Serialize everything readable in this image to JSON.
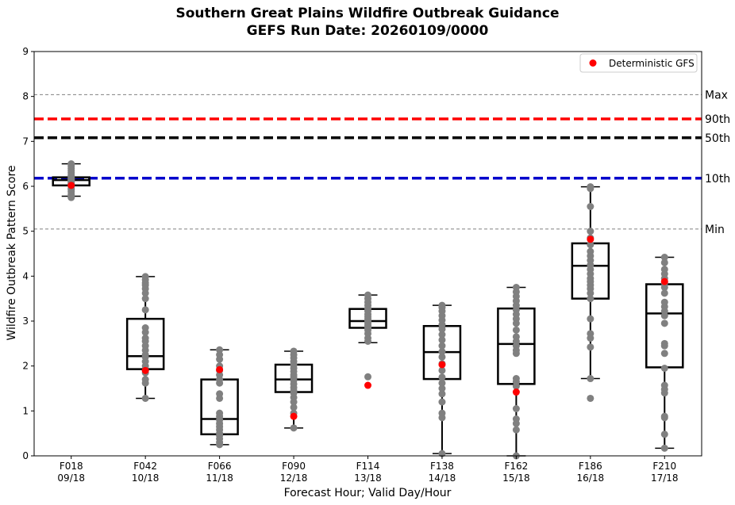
{
  "chart_data": {
    "type": "box",
    "title": "Southern Great Plains Wildfire Outbreak Guidance",
    "subtitle": "GEFS Run Date: 20260109/0000",
    "xlabel": "Forecast Hour; Valid Day/Hour",
    "ylabel": "Wildfire Outbreak Pattern Score",
    "ylim": [
      0,
      9
    ],
    "yticks": [
      "0",
      "1",
      "2",
      "3",
      "4",
      "5",
      "6",
      "7",
      "8",
      "9"
    ],
    "legend": {
      "label": "Deterministic GFS",
      "placement": "top-right"
    },
    "reference_lines": [
      {
        "label": "Max",
        "value": 8.04,
        "color": "#808080",
        "style": "thin-dashed"
      },
      {
        "label": "90th",
        "value": 7.5,
        "color": "#ff0000",
        "style": "thick-dashed"
      },
      {
        "label": "50th",
        "value": 7.08,
        "color": "#000000",
        "style": "thick-dashed"
      },
      {
        "label": "10th",
        "value": 6.18,
        "color": "#0000cc",
        "style": "thick-dashed"
      },
      {
        "label": "Min",
        "value": 5.05,
        "color": "#808080",
        "style": "thin-dashed"
      }
    ],
    "series": [
      {
        "hour": "F018",
        "valid": "09/18",
        "whisker_low": 5.78,
        "q1": 6.02,
        "median": 6.14,
        "q3": 6.2,
        "whisker_high": 6.5,
        "gfs": 6.02,
        "members": [
          5.75,
          5.78,
          5.82,
          5.88,
          5.92,
          5.95,
          6.0,
          6.02,
          6.05,
          6.08,
          6.1,
          6.12,
          6.14,
          6.15,
          6.17,
          6.18,
          6.2,
          6.22,
          6.25,
          6.3,
          6.35,
          6.4,
          6.45,
          6.5
        ]
      },
      {
        "hour": "F042",
        "valid": "10/18",
        "whisker_low": 1.28,
        "q1": 1.93,
        "median": 2.22,
        "q3": 3.05,
        "whisker_high": 3.99,
        "gfs": 1.9,
        "members": [
          1.28,
          1.62,
          1.7,
          1.85,
          1.9,
          2.0,
          2.1,
          2.2,
          2.25,
          2.35,
          2.45,
          2.55,
          2.62,
          2.75,
          2.85,
          3.25,
          3.5,
          3.62,
          3.72,
          3.8,
          3.85,
          3.92,
          3.99
        ]
      },
      {
        "hour": "F066",
        "valid": "11/18",
        "whisker_low": 0.25,
        "q1": 0.48,
        "median": 0.82,
        "q3": 1.7,
        "whisker_high": 2.36,
        "gfs": 1.92,
        "members": [
          0.25,
          0.3,
          0.38,
          0.45,
          0.5,
          0.58,
          0.65,
          0.72,
          0.8,
          0.88,
          0.95,
          1.28,
          1.38,
          1.62,
          1.7,
          1.8,
          1.9,
          2.0,
          2.15,
          2.25,
          2.36
        ]
      },
      {
        "hour": "F090",
        "valid": "12/18",
        "whisker_low": 0.62,
        "q1": 1.42,
        "median": 1.7,
        "q3": 2.03,
        "whisker_high": 2.33,
        "gfs": 0.88,
        "members": [
          0.62,
          0.95,
          1.08,
          1.2,
          1.3,
          1.4,
          1.45,
          1.52,
          1.6,
          1.68,
          1.75,
          1.8,
          1.88,
          1.95,
          2.02,
          2.1,
          2.18,
          2.25,
          2.33
        ]
      },
      {
        "hour": "F114",
        "valid": "13/18",
        "whisker_low": 2.52,
        "q1": 2.85,
        "median": 3.0,
        "q3": 3.27,
        "whisker_high": 3.58,
        "gfs": 1.57,
        "members": [
          1.76,
          2.55,
          2.62,
          2.72,
          2.8,
          2.85,
          2.9,
          2.95,
          3.0,
          3.05,
          3.1,
          3.15,
          3.22,
          3.28,
          3.35,
          3.42,
          3.5,
          3.58
        ]
      },
      {
        "hour": "F138",
        "valid": "14/18",
        "whisker_low": 0.05,
        "q1": 1.71,
        "median": 2.31,
        "q3": 2.89,
        "whisker_high": 3.35,
        "gfs": 2.03,
        "members": [
          0.05,
          0.85,
          0.95,
          1.2,
          1.38,
          1.5,
          1.62,
          1.75,
          1.9,
          2.05,
          2.2,
          2.32,
          2.45,
          2.58,
          2.7,
          2.82,
          2.92,
          3.02,
          3.12,
          3.22,
          3.3,
          3.35
        ]
      },
      {
        "hour": "F162",
        "valid": "15/18",
        "whisker_low": 0.0,
        "q1": 1.6,
        "median": 2.49,
        "q3": 3.28,
        "whisker_high": 3.75,
        "gfs": 1.42,
        "members": [
          0.0,
          0.58,
          0.72,
          0.82,
          1.05,
          1.55,
          1.65,
          1.72,
          2.28,
          2.35,
          2.45,
          2.55,
          2.65,
          2.8,
          2.95,
          3.05,
          3.15,
          3.25,
          3.35,
          3.45,
          3.55,
          3.65,
          3.75
        ]
      },
      {
        "hour": "F186",
        "valid": "16/18",
        "whisker_low": 1.72,
        "q1": 3.5,
        "median": 4.23,
        "q3": 4.73,
        "whisker_high": 5.99,
        "gfs": 4.82,
        "members": [
          1.28,
          1.72,
          2.42,
          2.62,
          2.72,
          3.05,
          3.5,
          3.62,
          3.72,
          3.8,
          3.88,
          3.95,
          4.05,
          4.15,
          4.25,
          4.35,
          4.45,
          4.55,
          4.7,
          4.85,
          5.0,
          5.55,
          5.95,
          5.99
        ]
      },
      {
        "hour": "F210",
        "valid": "17/18",
        "whisker_low": 0.17,
        "q1": 1.97,
        "median": 3.17,
        "q3": 3.82,
        "whisker_high": 4.42,
        "gfs": 3.88,
        "members": [
          0.17,
          0.48,
          0.85,
          0.88,
          1.4,
          1.48,
          1.57,
          1.95,
          2.28,
          2.45,
          2.5,
          2.95,
          3.12,
          3.22,
          3.32,
          3.42,
          3.62,
          3.75,
          3.85,
          3.95,
          4.05,
          4.15,
          4.3,
          4.42
        ]
      }
    ]
  }
}
